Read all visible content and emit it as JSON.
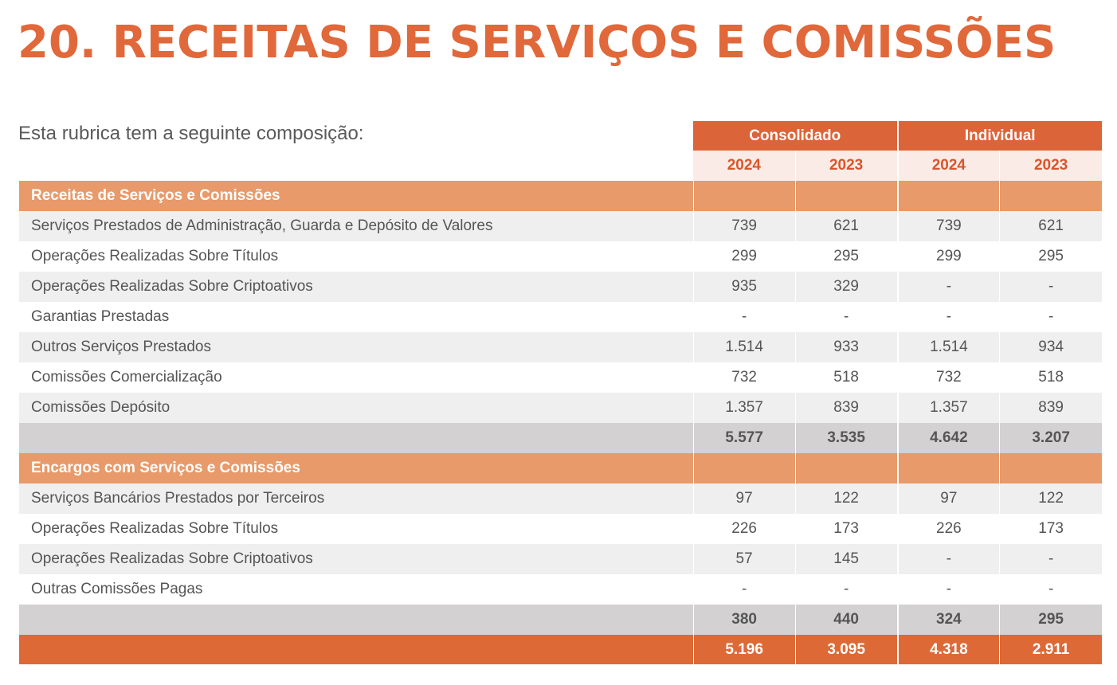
{
  "title": "20. RECEITAS DE SERVIÇOS E COMISSÕES",
  "intro": "Esta rubrica tem a seguinte composição:",
  "groups": [
    "Consolidado",
    "Individual"
  ],
  "years": [
    "2024",
    "2023",
    "2024",
    "2023"
  ],
  "sections": [
    {
      "label": "Receitas de Serviços e Comissões",
      "rows": [
        {
          "label": "Serviços Prestados de Administração, Guarda e Depósito de Valores",
          "values": [
            "739",
            "621",
            "739",
            "621"
          ]
        },
        {
          "label": "Operações Realizadas Sobre Títulos",
          "values": [
            "299",
            "295",
            "299",
            "295"
          ]
        },
        {
          "label": "Operações Realizadas Sobre Criptoativos",
          "values": [
            "935",
            "329",
            "-",
            "-"
          ]
        },
        {
          "label": "Garantias Prestadas",
          "values": [
            "-",
            "-",
            "-",
            "-"
          ]
        },
        {
          "label": "Outros Serviços Prestados",
          "values": [
            "1.514",
            "933",
            "1.514",
            "934"
          ]
        },
        {
          "label": "Comissões Comercialização",
          "values": [
            "732",
            "518",
            "732",
            "518"
          ]
        },
        {
          "label": "Comissões Depósito",
          "values": [
            "1.357",
            "839",
            "1.357",
            "839"
          ]
        }
      ],
      "total": [
        "5.577",
        "3.535",
        "4.642",
        "3.207"
      ]
    },
    {
      "label": "Encargos com Serviços e Comissões",
      "rows": [
        {
          "label": "Serviços Bancários Prestados por Terceiros",
          "values": [
            "97",
            "122",
            "97",
            "122"
          ]
        },
        {
          "label": "Operações Realizadas Sobre Títulos",
          "values": [
            "226",
            "173",
            "226",
            "173"
          ]
        },
        {
          "label": "Operações Realizadas Sobre Criptoativos",
          "values": [
            "57",
            "145",
            "-",
            "-"
          ]
        },
        {
          "label": "Outras Comissões Pagas",
          "values": [
            "-",
            "-",
            "-",
            "-"
          ]
        }
      ],
      "total": [
        "380",
        "440",
        "324",
        "295"
      ]
    }
  ],
  "grand_total": [
    "5.196",
    "3.095",
    "4.318",
    "2.911"
  ],
  "colors": {
    "title": "#e0683a",
    "group_header": "#dc6439",
    "year_header_bg": "#fbebe6",
    "year_header_text": "#d9552b",
    "section_bg": "#e89a6a",
    "row_alt_bg": "#efefef",
    "subtotal_bg": "#d3d1d1",
    "grand_total_bg": "#dd6a36"
  }
}
